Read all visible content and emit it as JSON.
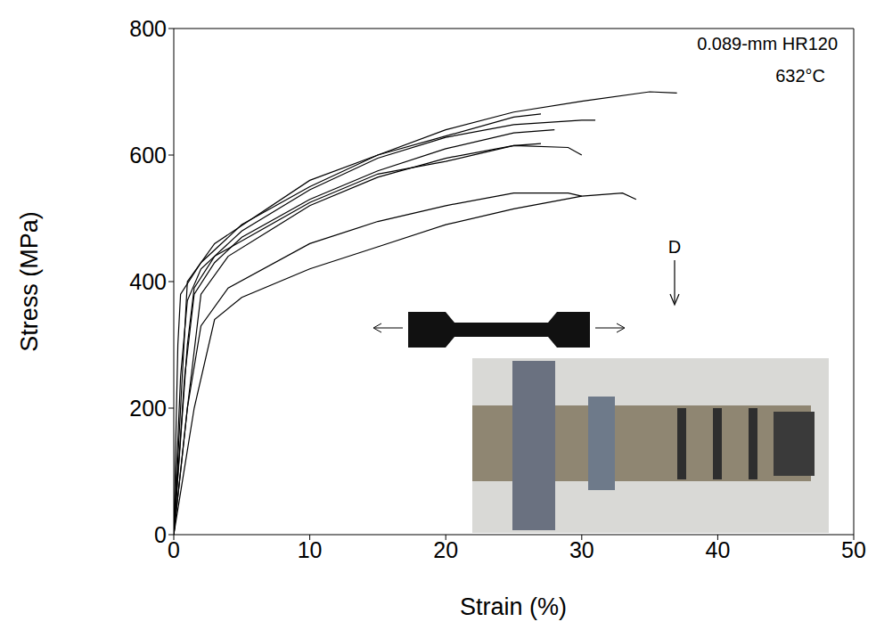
{
  "chart_data": {
    "type": "line",
    "x_label": "Strain (%)",
    "y_label": "Stress (MPa)",
    "xlim": [
      0,
      50
    ],
    "xticks": [
      0,
      10,
      20,
      30,
      40,
      50
    ],
    "ylim": [
      0,
      800
    ],
    "yticks": [
      0,
      200,
      400,
      600,
      800
    ],
    "grid": false,
    "annotations": [
      {
        "text": "0.089-mm HR120"
      },
      {
        "text": "632°C"
      },
      {
        "text": "D"
      }
    ],
    "series": [
      {
        "color": "#000000",
        "x": [
          0,
          0.3,
          0.5,
          2,
          5,
          10,
          15,
          20,
          25,
          30,
          35,
          37
        ],
        "values": [
          0,
          300,
          380,
          430,
          490,
          550,
          600,
          640,
          668,
          685,
          700,
          698
        ]
      },
      {
        "color": "#000000",
        "x": [
          0,
          0.5,
          1,
          2,
          5,
          10,
          15,
          20,
          25,
          30,
          31
        ],
        "values": [
          0,
          250,
          370,
          420,
          480,
          545,
          595,
          628,
          648,
          655,
          655
        ]
      },
      {
        "color": "#000000",
        "x": [
          0,
          0.8,
          1.5,
          3,
          5,
          10,
          15,
          20,
          25,
          28
        ],
        "values": [
          0,
          250,
          380,
          430,
          470,
          530,
          575,
          610,
          635,
          640
        ]
      },
      {
        "color": "#000000",
        "x": [
          0,
          1,
          2,
          4,
          10,
          15,
          20,
          25,
          29,
          30
        ],
        "values": [
          0,
          200,
          380,
          440,
          520,
          565,
          595,
          615,
          612,
          600
        ]
      },
      {
        "color": "#000000",
        "x": [
          0,
          1,
          1.5,
          3,
          10,
          15,
          20,
          25,
          27
        ],
        "values": [
          0,
          300,
          390,
          440,
          525,
          570,
          590,
          615,
          618
        ]
      },
      {
        "color": "#000000",
        "x": [
          0,
          1,
          2,
          4,
          10,
          15,
          20,
          25,
          29,
          30
        ],
        "values": [
          0,
          200,
          330,
          390,
          460,
          495,
          520,
          540,
          540,
          535
        ]
      },
      {
        "color": "#000000",
        "x": [
          0,
          1.5,
          3,
          5,
          10,
          15,
          20,
          25,
          30,
          33,
          34
        ],
        "values": [
          0,
          200,
          340,
          375,
          420,
          455,
          490,
          515,
          535,
          540,
          530
        ]
      },
      {
        "color": "#000000",
        "x": [
          0,
          0.5,
          1,
          3,
          10,
          15,
          20,
          25,
          27
        ],
        "values": [
          0,
          200,
          400,
          460,
          560,
          600,
          630,
          660,
          665
        ]
      }
    ]
  }
}
